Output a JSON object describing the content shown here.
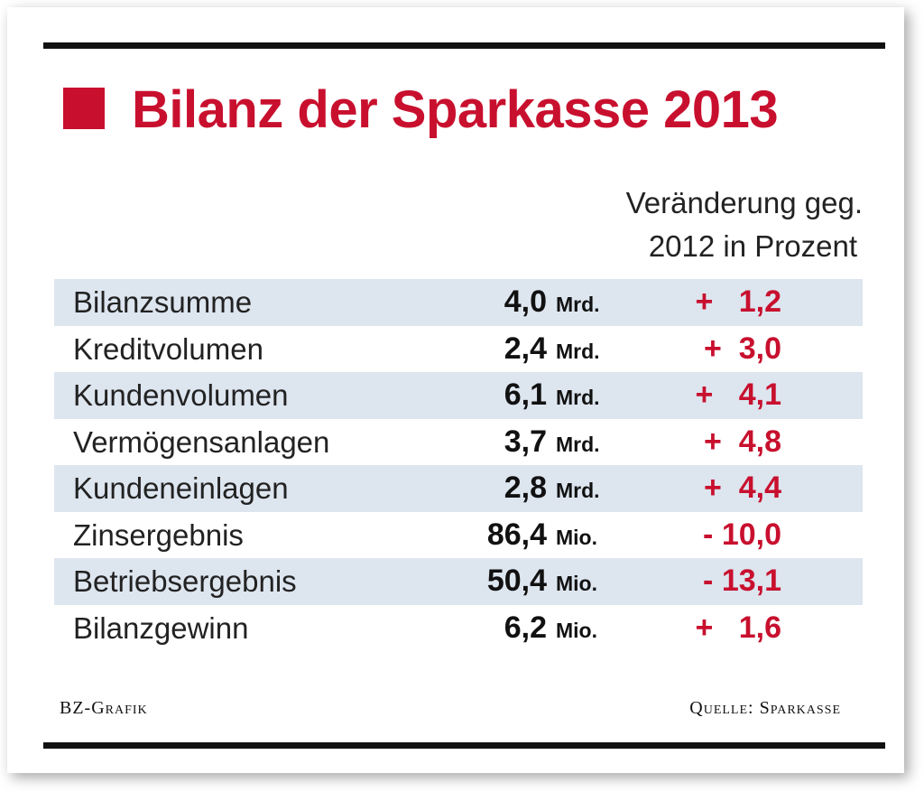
{
  "title": "Bilanz der Sparkasse 2013",
  "column_header": {
    "line1": "Veränderung geg.",
    "line2": "2012 in Prozent"
  },
  "chart_data": {
    "type": "table",
    "title": "Bilanz der Sparkasse 2013",
    "columns": [
      "",
      "",
      "",
      "Veränderung geg. 2012 in Prozent"
    ],
    "rows": [
      {
        "label": "Bilanzsumme",
        "value": "4,0",
        "unit": "Mrd.",
        "change": "+   1,2"
      },
      {
        "label": "Kreditvolumen",
        "value": "2,4",
        "unit": "Mrd.",
        "change": "+  3,0"
      },
      {
        "label": "Kundenvolumen",
        "value": "6,1",
        "unit": "Mrd.",
        "change": "+   4,1"
      },
      {
        "label": "Vermögensanlagen",
        "value": "3,7",
        "unit": "Mrd.",
        "change": "+  4,8"
      },
      {
        "label": "Kundeneinlagen",
        "value": "2,8",
        "unit": "Mrd.",
        "change": "+  4,4"
      },
      {
        "label": "Zinsergebnis",
        "value": "86,4",
        "unit": "Mio.",
        "change": "- 10,0"
      },
      {
        "label": "Betriebsergebnis",
        "value": "50,4",
        "unit": "Mio.",
        "change": "- 13,1"
      },
      {
        "label": "Bilanzgewinn",
        "value": "6,2",
        "unit": "Mio.",
        "change": "+   1,6"
      }
    ]
  },
  "footer": {
    "left": "BZ-Grafik",
    "right": "Quelle: Sparkasse"
  },
  "colors": {
    "accent": "#c8102e",
    "row_shade": "#dde5ef",
    "rule": "#111111"
  }
}
